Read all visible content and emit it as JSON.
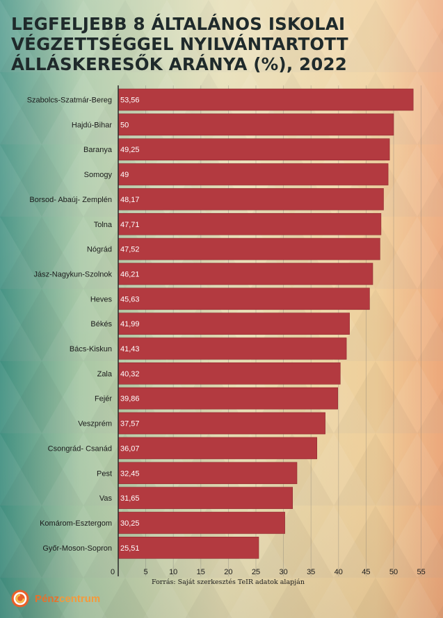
{
  "title": "LEGFELJEBB 8 ÁLTALÁNOS ISKOLAI VÉGZETTSÉGGEL NYILVÁNTARTOTT ÁLLÁSKERESŐK ARÁNYA (%), 2022",
  "source": "Forrás: Saját szerkesztés TeIR adatok alapján",
  "logo": {
    "part1": "Pénz",
    "part2": "centrum"
  },
  "colors": {
    "bar": "#b33a40",
    "bar_border": "#8e2a30"
  },
  "chart_data": {
    "type": "bar",
    "orientation": "horizontal",
    "title": "LEGFELJEBB 8 ÁLTALÁNOS ISKOLAI VÉGZETTSÉGGEL NYILVÁNTARTOTT ÁLLÁSKERESŐK ARÁNYA (%), 2022",
    "xlabel": "",
    "ylabel": "",
    "xlim": [
      0,
      57
    ],
    "xticks": [
      0,
      5,
      10,
      15,
      20,
      25,
      30,
      35,
      40,
      45,
      50,
      55
    ],
    "grid": true,
    "categories": [
      "Szabolcs-Szatmár-Bereg",
      "Hajdú-Bihar",
      "Baranya",
      "Somogy",
      "Borsod- Abaúj- Zemplén",
      "Tolna",
      "Nógrád",
      "Jász-Nagykun-Szolnok",
      "Heves",
      "Békés",
      "Bács-Kiskun",
      "Zala",
      "Fejér",
      "Veszprém",
      "Csongrád- Csanád",
      "Pest",
      "Vas",
      "Komárom-Esztergom",
      "Győr-Moson-Sopron"
    ],
    "values": [
      53.56,
      50,
      49.25,
      49,
      48.17,
      47.71,
      47.52,
      46.21,
      45.63,
      41.99,
      41.43,
      40.32,
      39.86,
      37.57,
      36.07,
      32.45,
      31.65,
      30.25,
      25.51
    ],
    "value_labels": [
      "53,56",
      "50",
      "49,25",
      "49",
      "48,17",
      "47,71",
      "47,52",
      "46,21",
      "45,63",
      "41,99",
      "41,43",
      "40,32",
      "39,86",
      "37,57",
      "36,07",
      "32,45",
      "31,65",
      "30,25",
      "25,51"
    ]
  }
}
